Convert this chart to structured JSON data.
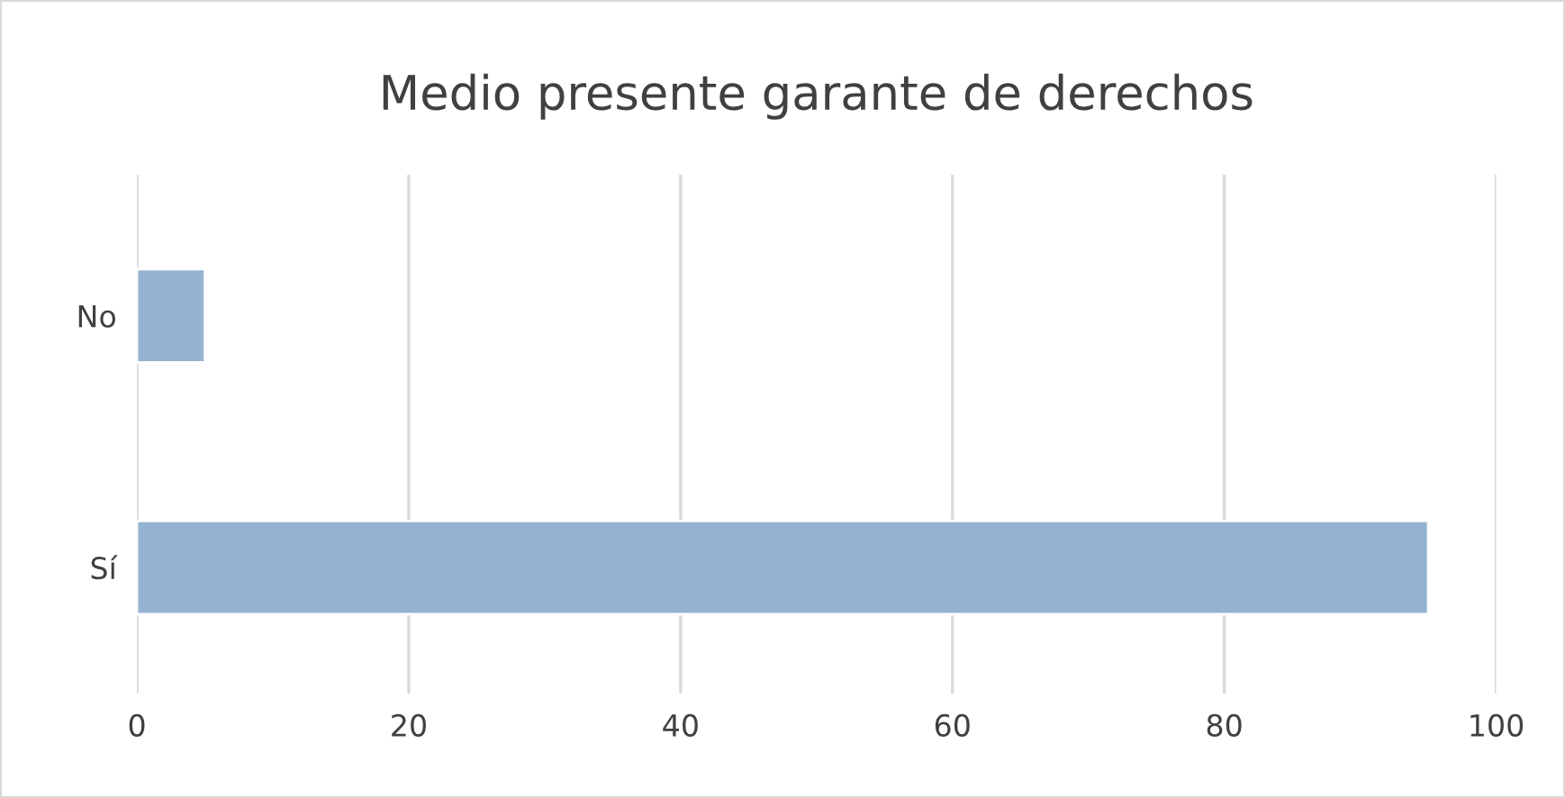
{
  "chart_data": {
    "type": "bar",
    "orientation": "horizontal",
    "title": "Medio presente garante de derechos",
    "categories": [
      "No",
      "Sí"
    ],
    "values": [
      5,
      95
    ],
    "color": "#95b3d0",
    "xlim": [
      0,
      100
    ],
    "xticks": [
      0,
      20,
      40,
      60,
      80,
      100
    ],
    "grid": "x"
  }
}
